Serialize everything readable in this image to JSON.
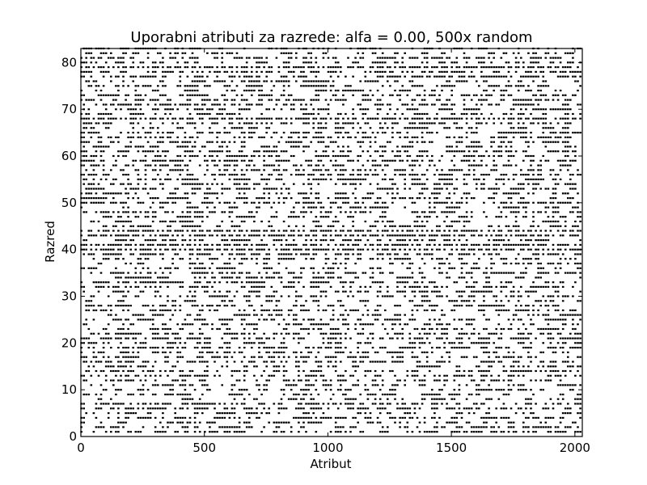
{
  "chart_data": {
    "type": "scatter",
    "title": "Uporabni atributi za razrede: alfa = 0.00, 500x random",
    "xlabel": "Atribut",
    "ylabel": "Razred",
    "xlim": [
      0,
      2030
    ],
    "ylim": [
      0,
      83
    ],
    "xticks": [
      0,
      500,
      1000,
      1500,
      2000
    ],
    "yticks": [
      0,
      10,
      20,
      30,
      40,
      50,
      60,
      70,
      80
    ],
    "grid": false,
    "marker": "square",
    "marker_color": "#000000",
    "n_classes": 83,
    "n_attributes": 2030,
    "highlighted_rows": [
      40,
      41,
      43,
      44,
      68,
      79
    ],
    "note_points": "Dense binary scatter: one small black mark per (attribute, class) pair judged useful."
  }
}
